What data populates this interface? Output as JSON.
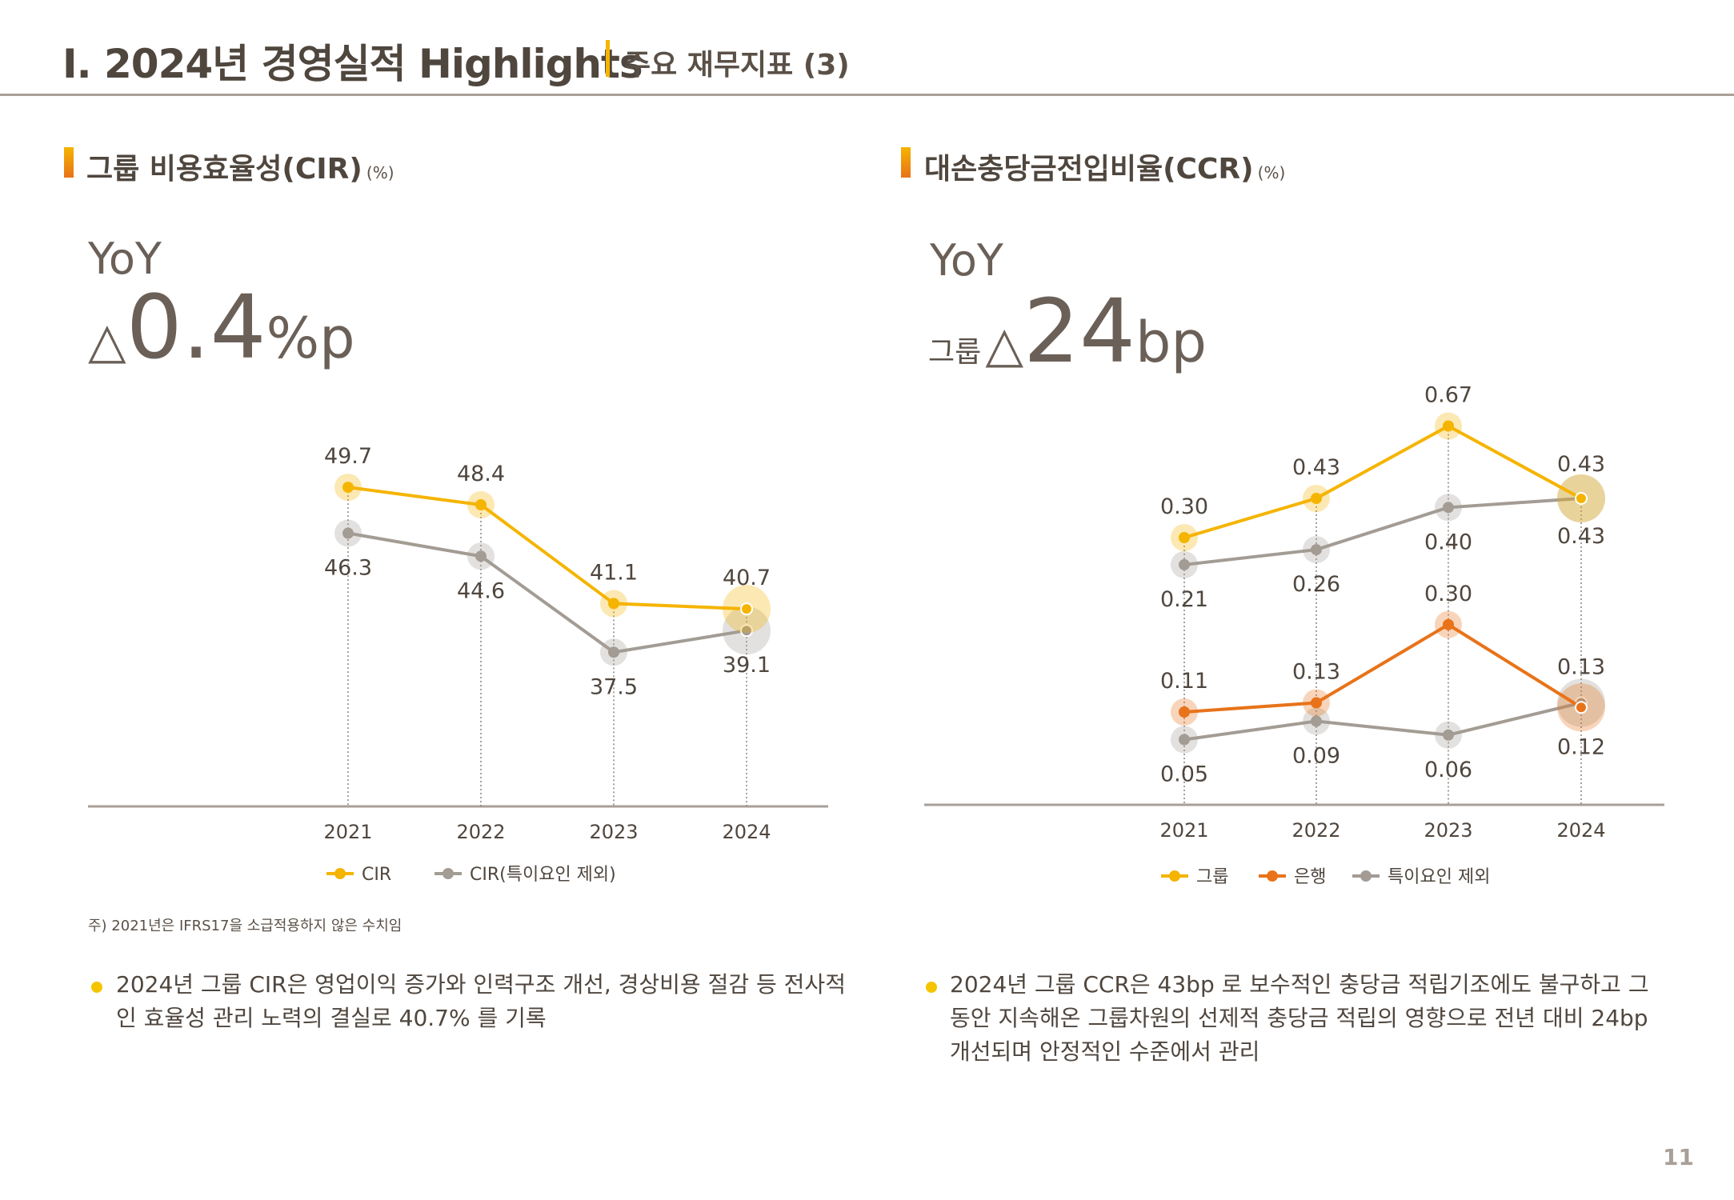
{
  "header": {
    "title": "I. 2024년 경영실적 Highlights",
    "subtitle": "주요 재무지표 (3)"
  },
  "left": {
    "section_title": "그룹 비용효율성(CIR)",
    "unit": "(%)",
    "yoy_label": "YoY",
    "yoy_symbol": "△",
    "yoy_value": "0.4",
    "yoy_unit": "%p",
    "note": "주) 2021년은 IFRS17을 소급적용하지 않은 수치임",
    "bullet": "2024년 그룹 CIR은 영업이익 증가와 인력구조 개선, 경상비용 절감 등 전사적인 효율성 관리 노력의 결실로 40.7% 를 기록"
  },
  "right": {
    "section_title": "대손충당금전입비율(CCR)",
    "unit": "(%)",
    "yoy_label": "YoY",
    "yoy_prefix": "그룹",
    "yoy_symbol": "△",
    "yoy_value": "24",
    "yoy_unit": "bp",
    "bullet": "2024년 그룹 CCR은 43bp 로 보수적인 충당금 적립기조에도 불구하고 그 동안 지속해온 그룹차원의 선제적 충당금 적립의 영향으로 전년 대비 24bp 개선되며 안정적인 수준에서 관리"
  },
  "page_number": "11",
  "chart_data": [
    {
      "type": "line",
      "categories": [
        "2021",
        "2022",
        "2023",
        "2024"
      ],
      "unit": "%",
      "legend": "bottom",
      "series": [
        {
          "name": "CIR",
          "values": [
            49.7,
            48.4,
            41.1,
            40.7
          ],
          "labels": [
            "49.7",
            "48.4",
            "41.1",
            "40.7"
          ],
          "color": "#f5b400"
        },
        {
          "name": "CIR(특이요인 제외)",
          "values": [
            46.3,
            44.6,
            37.5,
            39.1
          ],
          "labels": [
            "46.3",
            "44.6",
            "37.5",
            "39.1"
          ],
          "color": "#a39c94"
        }
      ]
    },
    {
      "type": "line",
      "categories": [
        "2021",
        "2022",
        "2023",
        "2024"
      ],
      "unit": "%",
      "legend": "bottom",
      "broken_axis": true,
      "series": [
        {
          "name": "그룹",
          "values": [
            0.3,
            0.43,
            0.67,
            0.43
          ],
          "labels": [
            "0.30",
            "0.43",
            "0.67",
            "0.43"
          ],
          "color": "#f5b400",
          "panel": "upper"
        },
        {
          "name": "그룹 특이요인 제외",
          "values": [
            0.21,
            0.26,
            0.4,
            0.43
          ],
          "labels": [
            "0.21",
            "0.26",
            "0.40",
            "0.43"
          ],
          "color": "#a39c94",
          "panel": "upper"
        },
        {
          "name": "은행",
          "values": [
            0.11,
            0.13,
            0.3,
            0.12
          ],
          "labels": [
            "0.11",
            "0.13",
            "0.30",
            "0.12"
          ],
          "color": "#e8731a",
          "panel": "lower"
        },
        {
          "name": "은행 특이요인 제외",
          "values": [
            0.05,
            0.09,
            0.06,
            0.13
          ],
          "labels": [
            "0.05",
            "0.09",
            "0.06",
            "0.13"
          ],
          "color": "#a39c94",
          "panel": "lower"
        }
      ],
      "legend_entries": [
        {
          "name": "그룹",
          "color": "#f5b400"
        },
        {
          "name": "은행",
          "color": "#e8731a"
        },
        {
          "name": "특이요인 제외",
          "color": "#a39c94"
        }
      ]
    }
  ]
}
